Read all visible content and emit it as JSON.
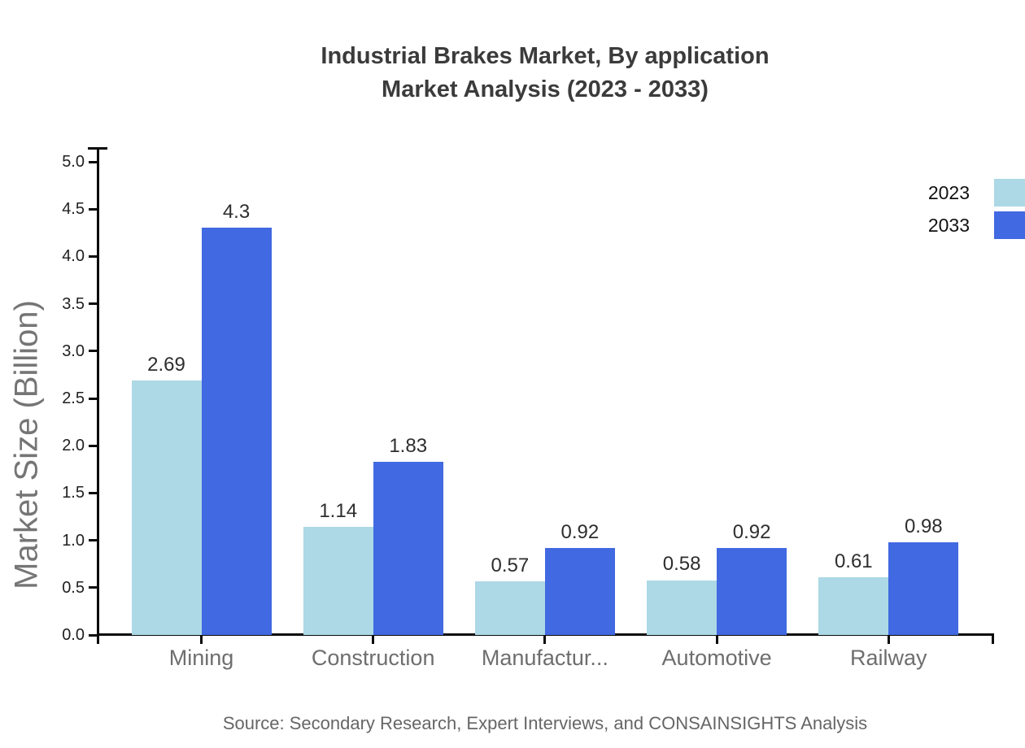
{
  "title": {
    "line1": "Industrial Brakes Market, By application",
    "line2": "Market Analysis (2023 - 2033)"
  },
  "source": "Source: Secondary Research, Expert Interviews, and CONSAINSIGHTS Analysis",
  "chart_data": {
    "type": "bar",
    "title": "Industrial Brakes Market, By application Market Analysis (2023 - 2033)",
    "categories": [
      "Mining",
      "Construction",
      "Manufactur...",
      "Automotive",
      "Railway"
    ],
    "series": [
      {
        "name": "2023",
        "color": "#add8e6",
        "values": [
          2.69,
          1.14,
          0.57,
          0.58,
          0.61
        ]
      },
      {
        "name": "2033",
        "color": "#4169e1",
        "values": [
          4.3,
          1.83,
          0.92,
          0.92,
          0.98
        ]
      }
    ],
    "xlabel": "",
    "ylabel": "Market Size (Billion)",
    "ylim": [
      0,
      5
    ],
    "ytick_step": 0.5,
    "grid": false,
    "legend_position": "top-right",
    "value_labels": true,
    "colors": {
      "axis": "#0a0a0a",
      "title_text": "#3b3b3b",
      "ytick_text": "#212121",
      "xtick_text": "#6e6e6e",
      "value_text": "#2e2e2e",
      "ylabel_text": "#757575",
      "source_text": "#666666",
      "background": "#ffffff"
    }
  }
}
